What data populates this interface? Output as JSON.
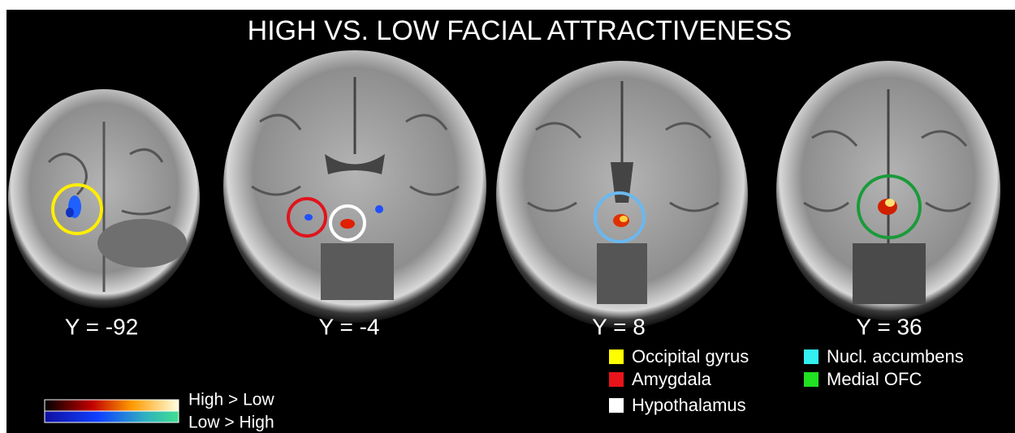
{
  "title": "HIGH VS. LOW FACIAL ATTRACTIVENESS",
  "slices": [
    {
      "label": "Y = -92"
    },
    {
      "label": "Y = -4"
    },
    {
      "label": "Y = 8"
    },
    {
      "label": "Y = 36"
    }
  ],
  "legend": [
    {
      "label": "Occipital gyrus",
      "color": "#ffff00"
    },
    {
      "label": "Amygdala",
      "color": "#e8141c"
    },
    {
      "label": "Hypothalamus",
      "color": "#ffffff"
    },
    {
      "label": "Nucl. accumbens",
      "color": "#33f0f0"
    },
    {
      "label": "Medial OFC",
      "color": "#22e022"
    }
  ],
  "colorbar": {
    "high_label": "High > Low",
    "low_label": "Low > High"
  }
}
